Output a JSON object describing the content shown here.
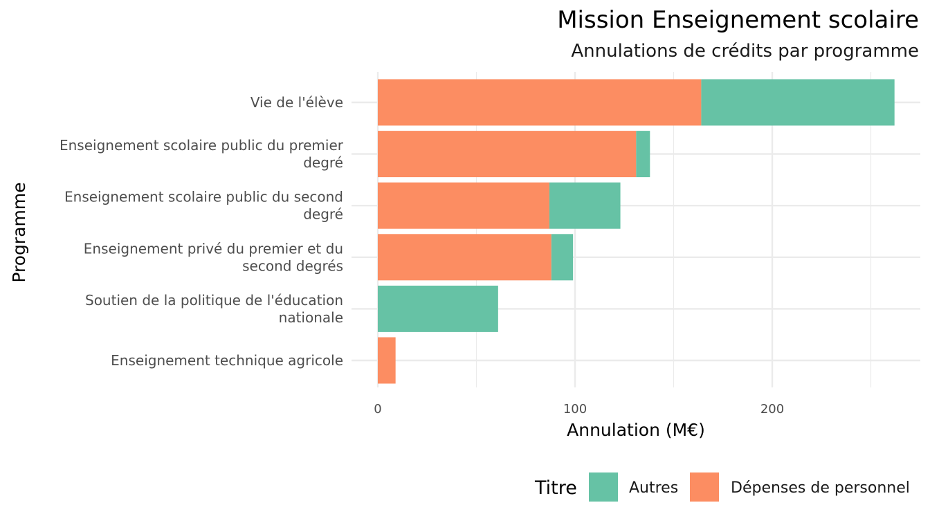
{
  "chart_data": {
    "type": "bar",
    "orientation": "horizontal",
    "stacked": true,
    "title": "Mission Enseignement scolaire",
    "subtitle": "Annulations de crédits par programme",
    "xlabel": "Annulation (M€)",
    "ylabel": "Programme",
    "xlim": [
      0,
      265
    ],
    "x_ticks": [
      0,
      100,
      200
    ],
    "grid": true,
    "legend_position": "bottom-right",
    "legend_title": "Titre",
    "categories": [
      [
        "Vie de l'élève"
      ],
      [
        "Enseignement scolaire public du premier",
        "degré"
      ],
      [
        "Enseignement scolaire public du second",
        "degré"
      ],
      [
        "Enseignement privé du premier et du",
        "second degrés"
      ],
      [
        "Soutien de la politique de l'éducation",
        "nationale"
      ],
      [
        "Enseignement technique agricole"
      ]
    ],
    "series": [
      {
        "name": "Dépenses de personnel",
        "color": "#FC8D62",
        "values": [
          164,
          131,
          87,
          88,
          0,
          9
        ]
      },
      {
        "name": "Autres",
        "color": "#66C2A5",
        "values": [
          98,
          7,
          36,
          11,
          61,
          0
        ]
      }
    ],
    "legend_order": [
      "Autres",
      "Dépenses de personnel"
    ]
  }
}
